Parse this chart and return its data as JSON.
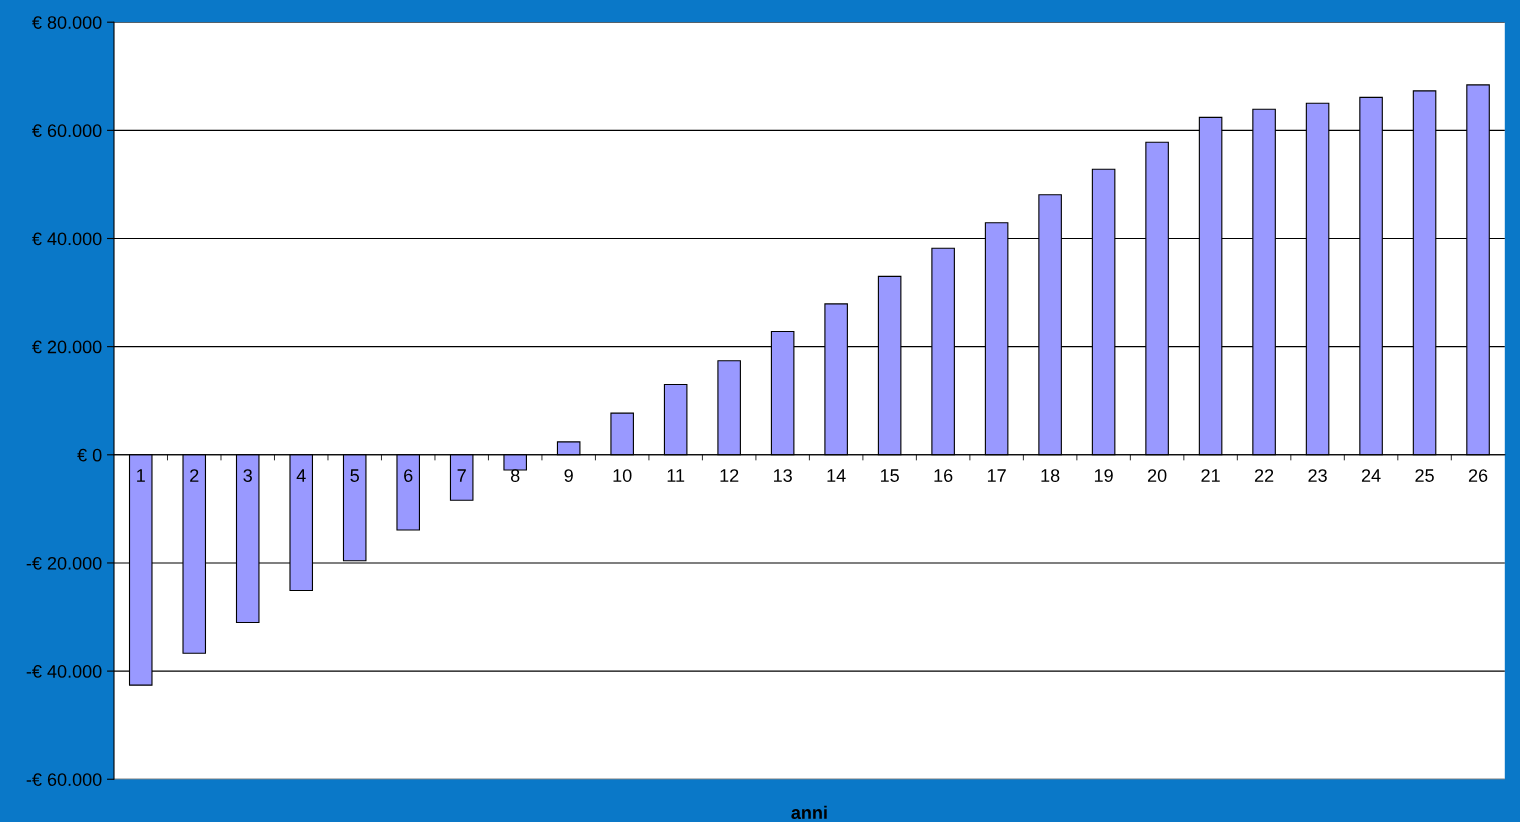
{
  "chart_data": {
    "type": "bar",
    "xlabel": "anni",
    "categories": [
      "1",
      "2",
      "3",
      "4",
      "5",
      "6",
      "7",
      "8",
      "9",
      "10",
      "11",
      "12",
      "13",
      "14",
      "15",
      "16",
      "17",
      "18",
      "19",
      "20",
      "21",
      "22",
      "23",
      "24",
      "25",
      "26"
    ],
    "values": [
      -42600,
      -36700,
      -31000,
      -25100,
      -19600,
      -13900,
      -8400,
      -2800,
      2400,
      7700,
      13000,
      17400,
      22800,
      27900,
      33000,
      38200,
      42900,
      48100,
      52800,
      57800,
      62400,
      63900,
      65000,
      66100,
      67300,
      68400
    ],
    "color": "#9999ff",
    "ylim": [
      -60000,
      80000
    ],
    "yticks": [
      {
        "value": -60000,
        "label": "-€ 60.000"
      },
      {
        "value": -40000,
        "label": "-€ 40.000"
      },
      {
        "value": -20000,
        "label": "-€ 20.000"
      },
      {
        "value": 0,
        "label": "€ 0"
      },
      {
        "value": 20000,
        "label": "€ 20.000"
      },
      {
        "value": 40000,
        "label": "€ 40.000"
      },
      {
        "value": 60000,
        "label": "€ 60.000"
      },
      {
        "value": 80000,
        "label": "€ 80.000"
      }
    ],
    "grid": "y",
    "legend": false
  }
}
